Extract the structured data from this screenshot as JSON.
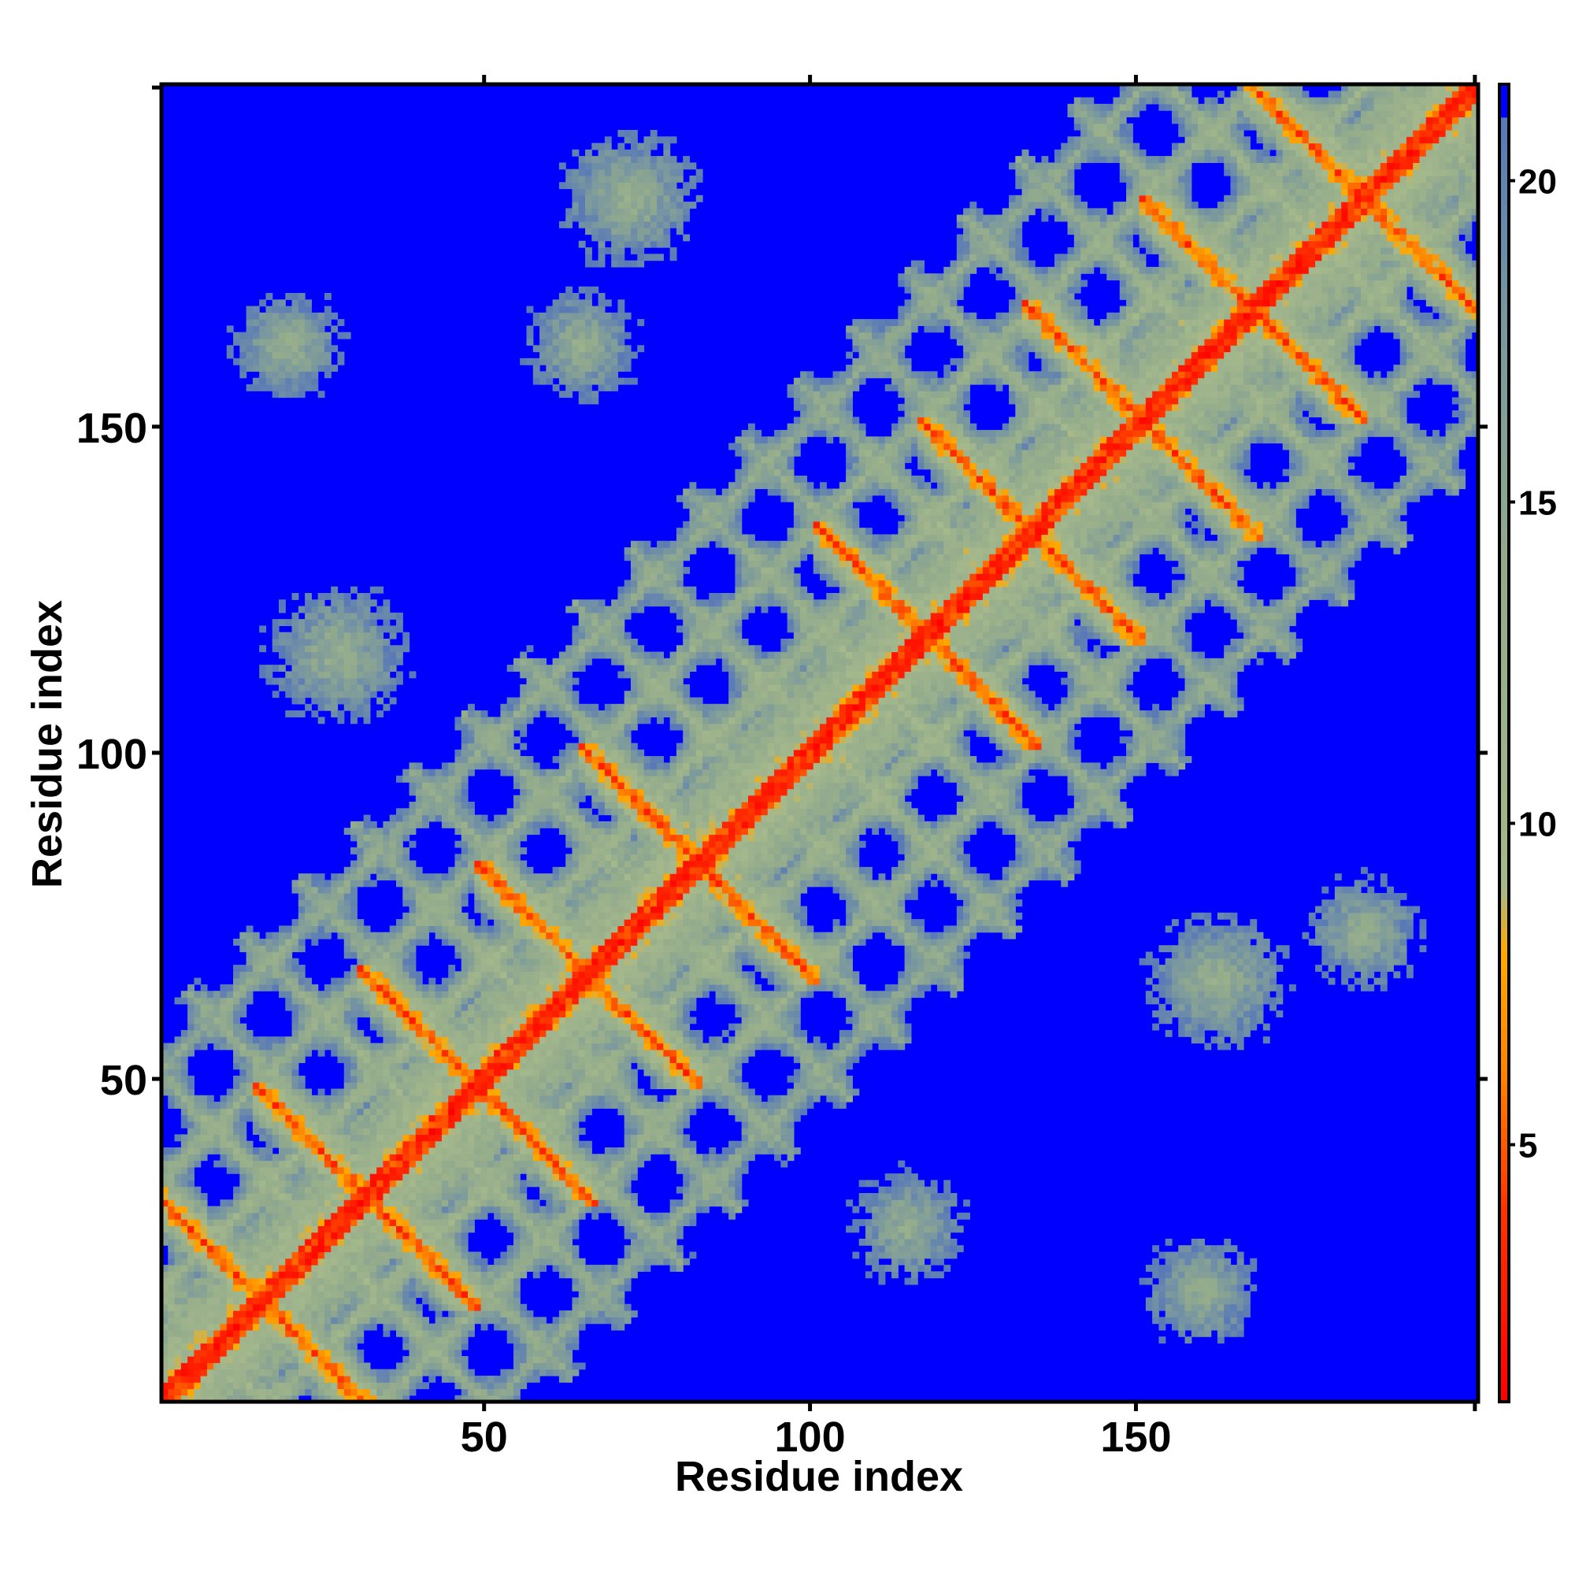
{
  "chart_data": {
    "type": "heatmap",
    "title": "",
    "xlabel": "Residue index",
    "ylabel": "Residue index",
    "n_residues": 202,
    "xlim": [
      1,
      202
    ],
    "ylim": [
      1,
      202
    ],
    "x_ticks": [
      50,
      100,
      150
    ],
    "y_ticks": [
      50,
      100,
      150
    ],
    "x_tick_labels": [
      "50",
      "100",
      "150"
    ],
    "y_tick_labels": [
      "50",
      "100",
      "150"
    ],
    "grid": false,
    "colorbar": {
      "range": [
        1,
        21.5
      ],
      "ticks": [
        5,
        10,
        15,
        20
      ],
      "tick_labels": [
        "5",
        "10",
        "15",
        "20"
      ],
      "threshold_max": 21,
      "above_threshold_color": "#0000ff",
      "stops": [
        {
          "value": 1,
          "color": "#ff0000"
        },
        {
          "value": 4,
          "color": "#ff3300"
        },
        {
          "value": 6,
          "color": "#ff8000"
        },
        {
          "value": 8,
          "color": "#ffaa00"
        },
        {
          "value": 9,
          "color": "#a6b98c"
        },
        {
          "value": 14,
          "color": "#93ab8c"
        },
        {
          "value": 18,
          "color": "#7896a0"
        },
        {
          "value": 21,
          "color": "#5878b8"
        }
      ]
    },
    "secondary_structure_segments": [
      {
        "start": 2,
        "end": 13,
        "type": "strand"
      },
      {
        "start": 18,
        "end": 30,
        "type": "strand"
      },
      {
        "start": 34,
        "end": 46,
        "type": "strand"
      },
      {
        "start": 52,
        "end": 64,
        "type": "strand"
      },
      {
        "start": 68,
        "end": 80,
        "type": "strand"
      },
      {
        "start": 86,
        "end": 98,
        "type": "strand"
      },
      {
        "start": 104,
        "end": 116,
        "type": "strand"
      },
      {
        "start": 120,
        "end": 132,
        "type": "strand"
      },
      {
        "start": 136,
        "end": 148,
        "type": "strand"
      },
      {
        "start": 154,
        "end": 166,
        "type": "strand"
      },
      {
        "start": 170,
        "end": 182,
        "type": "strand"
      },
      {
        "start": 188,
        "end": 200,
        "type": "strand"
      }
    ],
    "antiparallel_pairs": [
      [
        [
          18,
          30
        ],
        [
          34,
          46
        ]
      ],
      [
        [
          2,
          13
        ],
        [
          18,
          30
        ]
      ],
      [
        [
          52,
          64
        ],
        [
          68,
          80
        ]
      ],
      [
        [
          68,
          80
        ],
        [
          86,
          98
        ]
      ],
      [
        [
          104,
          116
        ],
        [
          120,
          132
        ]
      ],
      [
        [
          120,
          132
        ],
        [
          136,
          148
        ]
      ],
      [
        [
          154,
          166
        ],
        [
          170,
          182
        ]
      ],
      [
        [
          170,
          182
        ],
        [
          188,
          200
        ]
      ],
      [
        [
          34,
          46
        ],
        [
          52,
          64
        ]
      ],
      [
        [
          136,
          148
        ],
        [
          154,
          166
        ]
      ]
    ],
    "far_contact_patches": [
      {
        "x": [
          10,
          30
        ],
        "y": [
          155,
          170
        ]
      },
      {
        "x": [
          55,
          75
        ],
        "y": [
          150,
          175
        ]
      },
      {
        "x": [
          60,
          85
        ],
        "y": [
          175,
          195
        ]
      },
      {
        "x": [
          150,
          170
        ],
        "y": [
          10,
          25
        ]
      },
      {
        "x": [
          150,
          175
        ],
        "y": [
          55,
          75
        ]
      },
      {
        "x": [
          175,
          195
        ],
        "y": [
          60,
          85
        ]
      },
      {
        "x": [
          15,
          40
        ],
        "y": [
          105,
          125
        ]
      },
      {
        "x": [
          105,
          125
        ],
        "y": [
          15,
          40
        ]
      }
    ]
  }
}
